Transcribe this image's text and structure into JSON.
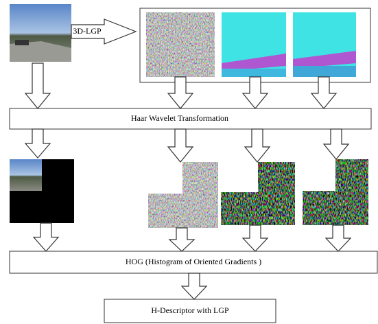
{
  "input_arrow_label": "3D-LGP",
  "stages": [
    {
      "label": "Haar Wavelet Transformation"
    },
    {
      "label": "HOG (Histogram of Oriented Gradients )"
    },
    {
      "label": "H-Descriptor with LGP"
    }
  ]
}
